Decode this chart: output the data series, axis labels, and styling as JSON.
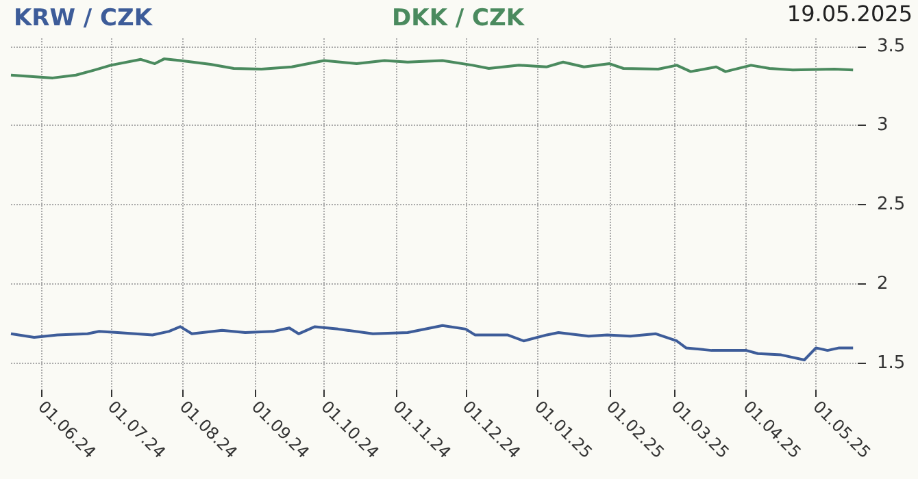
{
  "chart_data": {
    "type": "line",
    "annotations": [
      "19.05.2025"
    ],
    "legend": "top",
    "grid": true,
    "marker": "none",
    "line_style": "solid",
    "xlim": [
      "2024-05-19",
      "2025-05-19"
    ],
    "xticks": [
      {
        "value": "2024-06-01",
        "label": "01.06.24"
      },
      {
        "value": "2024-07-01",
        "label": "01.07.24"
      },
      {
        "value": "2024-08-01",
        "label": "01.08.24"
      },
      {
        "value": "2024-09-01",
        "label": "01.09.24"
      },
      {
        "value": "2024-10-01",
        "label": "01.10.24"
      },
      {
        "value": "2024-11-01",
        "label": "01.11.24"
      },
      {
        "value": "2024-12-01",
        "label": "01.12.24"
      },
      {
        "value": "2025-01-01",
        "label": "01.01.25"
      },
      {
        "value": "2025-02-01",
        "label": "01.02.25"
      },
      {
        "value": "2025-03-01",
        "label": "01.03.25"
      },
      {
        "value": "2025-04-01",
        "label": "01.04.25"
      },
      {
        "value": "2025-05-01",
        "label": "01.05.25"
      }
    ],
    "ylim": [
      1.33,
      3.55
    ],
    "yticks": [
      1.5,
      2,
      2.5,
      3,
      3.5
    ],
    "series": [
      {
        "name": "KRW / CZK",
        "color": "#3d5c99",
        "x": [
          "2024-05-19",
          "2024-05-29",
          "2024-06-08",
          "2024-06-21",
          "2024-06-26",
          "2024-07-04",
          "2024-07-19",
          "2024-07-26",
          "2024-07-31",
          "2024-08-05",
          "2024-08-18",
          "2024-08-28",
          "2024-09-09",
          "2024-09-16",
          "2024-09-20",
          "2024-09-27",
          "2024-10-07",
          "2024-10-22",
          "2024-11-06",
          "2024-11-21",
          "2024-12-01",
          "2024-12-05",
          "2024-12-19",
          "2024-12-26",
          "2025-01-05",
          "2025-01-10",
          "2025-01-23",
          "2025-01-31",
          "2025-02-10",
          "2025-02-21",
          "2025-03-02",
          "2025-03-06",
          "2025-03-17",
          "2025-04-01",
          "2025-04-06",
          "2025-04-16",
          "2025-04-26",
          "2025-05-01",
          "2025-05-06",
          "2025-05-11",
          "2025-05-17"
        ],
        "values": [
          1.685,
          1.663,
          1.678,
          1.685,
          1.7,
          1.693,
          1.678,
          1.7,
          1.73,
          1.685,
          1.707,
          1.693,
          1.7,
          1.722,
          1.685,
          1.73,
          1.715,
          1.685,
          1.693,
          1.737,
          1.715,
          1.678,
          1.678,
          1.64,
          1.678,
          1.693,
          1.67,
          1.678,
          1.67,
          1.685,
          1.64,
          1.596,
          1.58,
          1.58,
          1.56,
          1.552,
          1.52,
          1.596,
          1.58,
          1.596,
          1.596
        ]
      },
      {
        "name": "DKK / CZK",
        "color": "#4a8a5e",
        "x": [
          "2024-05-19",
          "2024-06-06",
          "2024-06-16",
          "2024-06-24",
          "2024-07-01",
          "2024-07-14",
          "2024-07-20",
          "2024-07-24",
          "2024-07-31",
          "2024-08-13",
          "2024-08-23",
          "2024-09-04",
          "2024-09-17",
          "2024-10-01",
          "2024-10-15",
          "2024-10-27",
          "2024-11-06",
          "2024-11-21",
          "2024-12-04",
          "2024-12-11",
          "2024-12-24",
          "2025-01-05",
          "2025-01-12",
          "2025-01-21",
          "2025-02-01",
          "2025-02-07",
          "2025-02-22",
          "2025-03-02",
          "2025-03-08",
          "2025-03-19",
          "2025-03-23",
          "2025-04-03",
          "2025-04-11",
          "2025-04-21",
          "2025-05-09",
          "2025-05-17"
        ],
        "values": [
          3.318,
          3.3,
          3.318,
          3.35,
          3.38,
          3.417,
          3.39,
          3.42,
          3.41,
          3.386,
          3.36,
          3.356,
          3.37,
          3.41,
          3.39,
          3.41,
          3.4,
          3.41,
          3.38,
          3.36,
          3.38,
          3.37,
          3.4,
          3.37,
          3.39,
          3.36,
          3.356,
          3.38,
          3.34,
          3.37,
          3.34,
          3.38,
          3.36,
          3.35,
          3.356,
          3.35
        ]
      }
    ]
  }
}
